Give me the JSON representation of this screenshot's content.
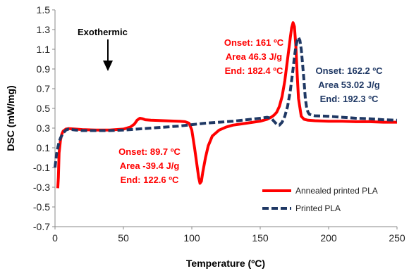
{
  "chart_data": {
    "type": "line",
    "xlabel": "Temperature (ºC)",
    "ylabel": "DSC (mW/mg)",
    "xlim": [
      0,
      250
    ],
    "ylim": [
      -0.7,
      1.5
    ],
    "xticks": [
      "0",
      "50",
      "100",
      "150",
      "200",
      "250"
    ],
    "yticks": [
      "-0.7",
      "-0.5",
      "-0.3",
      "-0.1",
      "0.1",
      "0.3",
      "0.5",
      "0.7",
      "0.9",
      "1.1",
      "1.3",
      "1.5"
    ],
    "grid": false,
    "legend_position": "bottom-right",
    "colors": {
      "annealed": "#ff0000",
      "printed": "#1f3864"
    },
    "series": [
      {
        "name": "Annealed printed PLA",
        "style": "solid",
        "x": [
          2,
          2.5,
          3,
          4,
          5,
          6,
          8,
          10,
          15,
          20,
          30,
          40,
          50,
          55,
          58,
          60,
          62,
          64,
          66,
          70,
          80,
          90,
          95,
          98,
          100,
          102,
          104,
          105,
          106,
          107,
          108,
          110,
          112,
          115,
          120,
          125,
          130,
          140,
          150,
          155,
          158,
          160,
          162,
          164,
          166,
          168,
          170,
          172,
          173,
          174,
          175,
          176,
          177,
          178,
          180,
          182,
          185,
          190,
          200,
          210,
          220,
          230,
          240,
          250
        ],
        "y": [
          -0.31,
          -0.2,
          0.05,
          0.18,
          0.24,
          0.27,
          0.29,
          0.295,
          0.29,
          0.285,
          0.28,
          0.28,
          0.29,
          0.31,
          0.34,
          0.38,
          0.4,
          0.395,
          0.385,
          0.38,
          0.375,
          0.37,
          0.365,
          0.35,
          0.28,
          0.1,
          -0.1,
          -0.2,
          -0.26,
          -0.24,
          -0.15,
          0.0,
          0.12,
          0.22,
          0.28,
          0.31,
          0.33,
          0.35,
          0.37,
          0.39,
          0.41,
          0.43,
          0.46,
          0.52,
          0.62,
          0.78,
          1.0,
          1.22,
          1.32,
          1.37,
          1.33,
          1.15,
          0.85,
          0.6,
          0.42,
          0.39,
          0.38,
          0.375,
          0.37,
          0.37,
          0.365,
          0.365,
          0.36,
          0.36
        ]
      },
      {
        "name": "Printed PLA",
        "style": "dashed",
        "x": [
          0,
          1,
          2,
          3,
          4,
          6,
          8,
          10,
          15,
          20,
          30,
          40,
          50,
          60,
          70,
          80,
          90,
          100,
          110,
          120,
          130,
          140,
          150,
          155,
          158,
          160,
          162,
          164,
          166,
          168,
          170,
          172,
          174,
          175,
          176,
          177,
          178,
          179,
          180,
          181,
          182,
          183,
          184,
          185,
          186,
          188,
          190,
          200,
          210,
          220,
          230,
          240,
          250
        ],
        "y": [
          -0.1,
          0.02,
          0.1,
          0.16,
          0.2,
          0.25,
          0.28,
          0.29,
          0.28,
          0.275,
          0.275,
          0.275,
          0.28,
          0.29,
          0.3,
          0.31,
          0.32,
          0.335,
          0.35,
          0.36,
          0.37,
          0.385,
          0.4,
          0.41,
          0.4,
          0.37,
          0.34,
          0.33,
          0.36,
          0.42,
          0.52,
          0.68,
          0.9,
          1.02,
          1.12,
          1.19,
          1.22,
          1.19,
          1.1,
          0.95,
          0.78,
          0.6,
          0.5,
          0.46,
          0.44,
          0.43,
          0.425,
          0.42,
          0.41,
          0.4,
          0.395,
          0.385,
          0.38
        ]
      }
    ],
    "annotations": [
      {
        "id": "exo",
        "lines": [
          "Exothermic"
        ],
        "color": "#000000"
      },
      {
        "id": "cold",
        "lines": [
          "Onset: 89.7 ºC",
          "Area -39.4 J/g",
          "End: 122.6 ºC"
        ],
        "color": "#ff0000"
      },
      {
        "id": "melt_annealed",
        "lines": [
          "Onset: 161 ºC",
          "Area 46.3 J/g",
          "End: 182.4 ºC"
        ],
        "color": "#ff0000"
      },
      {
        "id": "melt_printed",
        "lines": [
          "Onset: 162.2 ºC",
          "Area 53.02 J/g",
          "End: 192.3 ºC"
        ],
        "color": "#1f3864"
      }
    ]
  }
}
